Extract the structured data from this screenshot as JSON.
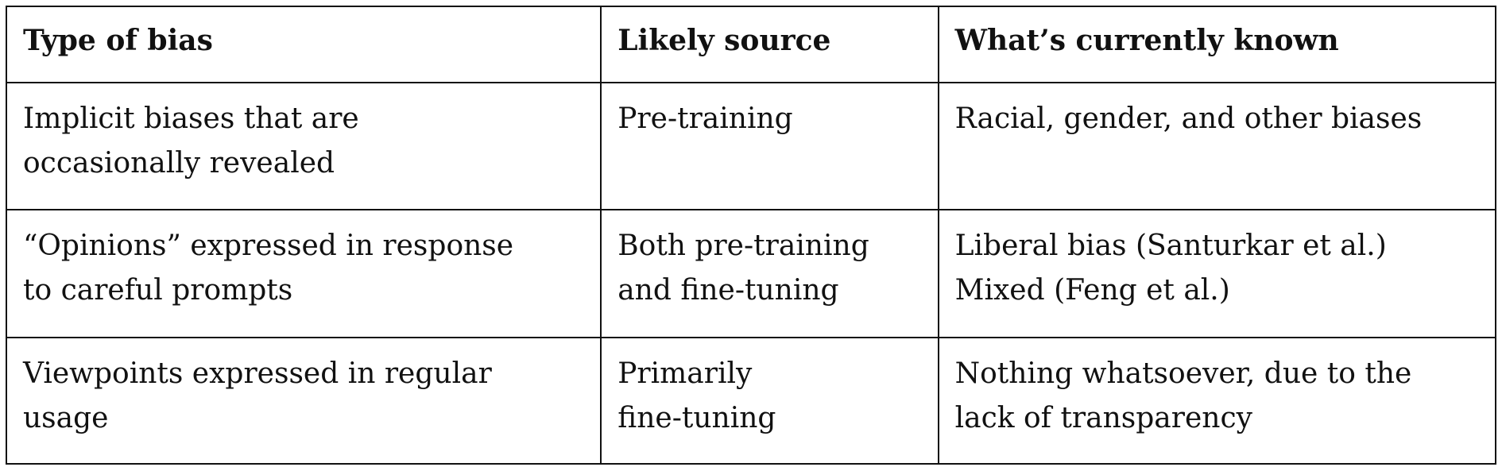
{
  "table": {
    "header": [
      "Type of bias",
      "Likely source",
      "What’s currently known"
    ],
    "rows": [
      [
        [
          "Implicit biases that are",
          "occasionally revealed"
        ],
        [
          "Pre-training"
        ],
        [
          "Racial, gender, and other biases"
        ]
      ],
      [
        [
          "“Opinions” expressed in response",
          "to careful prompts"
        ],
        [
          "Both pre-training",
          "and fine-tuning"
        ],
        [
          "Liberal bias (Santurkar et al.)",
          "Mixed (Feng et al.)"
        ]
      ],
      [
        [
          "Viewpoints expressed in regular",
          "usage"
        ],
        [
          "Primarily",
          "fine-tuning"
        ],
        [
          "Nothing whatsoever, due to the",
          "lack of transparency"
        ]
      ]
    ]
  }
}
